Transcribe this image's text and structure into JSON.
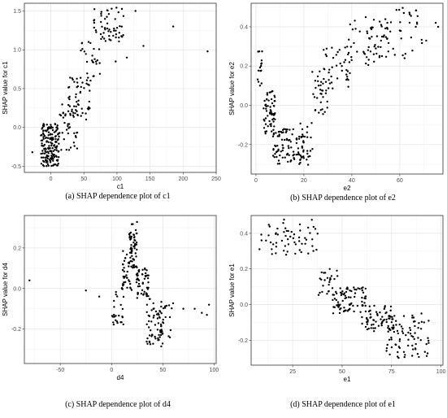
{
  "colors": {
    "panel_border": "#333333",
    "grid_major": "#e5e5e5",
    "grid_minor": "#f2f2f2",
    "point": "#000000"
  },
  "chart_data": [
    {
      "type": "scatter",
      "caption": "(a) SHAP dependence plot of c1",
      "xlabel": "c1",
      "ylabel": "SHAP value for c1",
      "xlim": [
        -40,
        250
      ],
      "ylim": [
        -0.58,
        1.6
      ],
      "xticks": [
        0,
        50,
        100,
        150,
        200,
        250
      ],
      "yticks": [
        -0.5,
        0.0,
        0.5,
        1.0,
        1.5
      ],
      "xtick_labels": [
        "0",
        "50",
        "100",
        "150",
        "200",
        "250"
      ],
      "ytick_labels": [
        "-0.5",
        "0.0",
        "0.5",
        "1.0",
        "1.5"
      ],
      "grid": true,
      "clusters": [
        {
          "x": [
            -15,
            12
          ],
          "y": [
            -0.5,
            0.05
          ],
          "n": 170
        },
        {
          "x": [
            12,
            40
          ],
          "y": [
            -0.3,
            0.3
          ],
          "n": 35
        },
        {
          "x": [
            25,
            60
          ],
          "y": [
            0.1,
            0.65
          ],
          "n": 55
        },
        {
          "x": [
            45,
            75
          ],
          "y": [
            0.6,
            1.2
          ],
          "n": 25
        },
        {
          "x": [
            65,
            110
          ],
          "y": [
            1.1,
            1.55
          ],
          "n": 55
        }
      ],
      "points": [
        [
          -28,
          -0.32
        ],
        [
          128,
          1.5
        ],
        [
          115,
          0.9
        ],
        [
          140,
          1.05
        ],
        [
          185,
          1.3
        ],
        [
          237,
          0.98
        ],
        [
          98,
          0.85
        ]
      ]
    },
    {
      "type": "scatter",
      "caption": "(b) SHAP dependence plot of e2",
      "xlabel": "e2",
      "ylabel": "SHAP value for e2",
      "xlim": [
        -2,
        78
      ],
      "ylim": [
        -0.35,
        0.52
      ],
      "xticks": [
        0,
        20,
        40,
        60
      ],
      "yticks": [
        -0.2,
        0.0,
        0.2,
        0.4
      ],
      "xtick_labels": [
        "0",
        "20",
        "40",
        "60"
      ],
      "ytick_labels": [
        "-0.2",
        "0.0",
        "0.2",
        "0.4"
      ],
      "grid": true,
      "clusters": [
        {
          "x": [
            0,
            3
          ],
          "y": [
            0.1,
            0.28
          ],
          "n": 15
        },
        {
          "x": [
            3,
            8
          ],
          "y": [
            -0.15,
            0.08
          ],
          "n": 60
        },
        {
          "x": [
            7,
            20
          ],
          "y": [
            -0.3,
            -0.12
          ],
          "n": 90
        },
        {
          "x": [
            18,
            24
          ],
          "y": [
            -0.32,
            -0.08
          ],
          "n": 25
        },
        {
          "x": [
            23,
            30
          ],
          "y": [
            -0.05,
            0.18
          ],
          "n": 30
        },
        {
          "x": [
            28,
            40
          ],
          "y": [
            0.05,
            0.3
          ],
          "n": 45
        },
        {
          "x": [
            38,
            55
          ],
          "y": [
            0.2,
            0.45
          ],
          "n": 55
        },
        {
          "x": [
            50,
            70
          ],
          "y": [
            0.25,
            0.5
          ],
          "n": 35
        }
      ],
      "points": [
        [
          75,
          0.42
        ],
        [
          76,
          0.4
        ],
        [
          62,
          0.24
        ],
        [
          71,
          0.33
        ]
      ]
    },
    {
      "type": "scatter",
      "caption": "(c) SHAP dependence plot of d4",
      "xlabel": "d4",
      "ylabel": "SHAP value for d4",
      "xlim": [
        -85,
        102
      ],
      "ylim": [
        -0.37,
        0.36
      ],
      "xticks": [
        -50,
        0,
        50,
        100
      ],
      "yticks": [
        -0.2,
        0.0,
        0.2
      ],
      "xtick_labels": [
        "-50",
        "0",
        "50",
        "100"
      ],
      "ytick_labels": [
        "-0.2",
        "0.0",
        "0.2"
      ],
      "grid": true,
      "clusters": [
        {
          "x": [
            0,
            12
          ],
          "y": [
            -0.18,
            0.0
          ],
          "n": 25
        },
        {
          "x": [
            10,
            20
          ],
          "y": [
            -0.02,
            0.2
          ],
          "n": 40
        },
        {
          "x": [
            17,
            25
          ],
          "y": [
            0.1,
            0.34
          ],
          "n": 55
        },
        {
          "x": [
            24,
            36
          ],
          "y": [
            -0.05,
            0.1
          ],
          "n": 50
        },
        {
          "x": [
            34,
            50
          ],
          "y": [
            -0.3,
            -0.05
          ],
          "n": 60
        },
        {
          "x": [
            48,
            60
          ],
          "y": [
            -0.25,
            -0.05
          ],
          "n": 20
        }
      ],
      "points": [
        [
          -80,
          0.04
        ],
        [
          -25,
          -0.01
        ],
        [
          -12,
          -0.04
        ],
        [
          70,
          -0.1
        ],
        [
          88,
          -0.12
        ],
        [
          95,
          -0.08
        ],
        [
          93,
          -0.13
        ],
        [
          81,
          -0.1
        ]
      ]
    },
    {
      "type": "scatter",
      "caption": "(d) SHAP dependence plot of e1",
      "xlabel": "e1",
      "ylabel": "SHAP value for e1",
      "xlim": [
        4,
        101
      ],
      "ylim": [
        -0.34,
        0.5
      ],
      "xticks": [
        25,
        50,
        75,
        100
      ],
      "yticks": [
        -0.2,
        0.0,
        0.2,
        0.4
      ],
      "xtick_labels": [
        "25",
        "50",
        "75",
        "100"
      ],
      "ytick_labels": [
        "-0.2",
        "0.0",
        "0.2",
        "0.4"
      ],
      "grid": true,
      "clusters": [
        {
          "x": [
            8,
            38
          ],
          "y": [
            0.28,
            0.48
          ],
          "n": 60
        },
        {
          "x": [
            38,
            48
          ],
          "y": [
            0.05,
            0.2
          ],
          "n": 25
        },
        {
          "x": [
            45,
            62
          ],
          "y": [
            -0.05,
            0.1
          ],
          "n": 80
        },
        {
          "x": [
            60,
            75
          ],
          "y": [
            -0.15,
            0.0
          ],
          "n": 55
        },
        {
          "x": [
            72,
            95
          ],
          "y": [
            -0.3,
            -0.05
          ],
          "n": 90
        }
      ],
      "points": []
    }
  ]
}
